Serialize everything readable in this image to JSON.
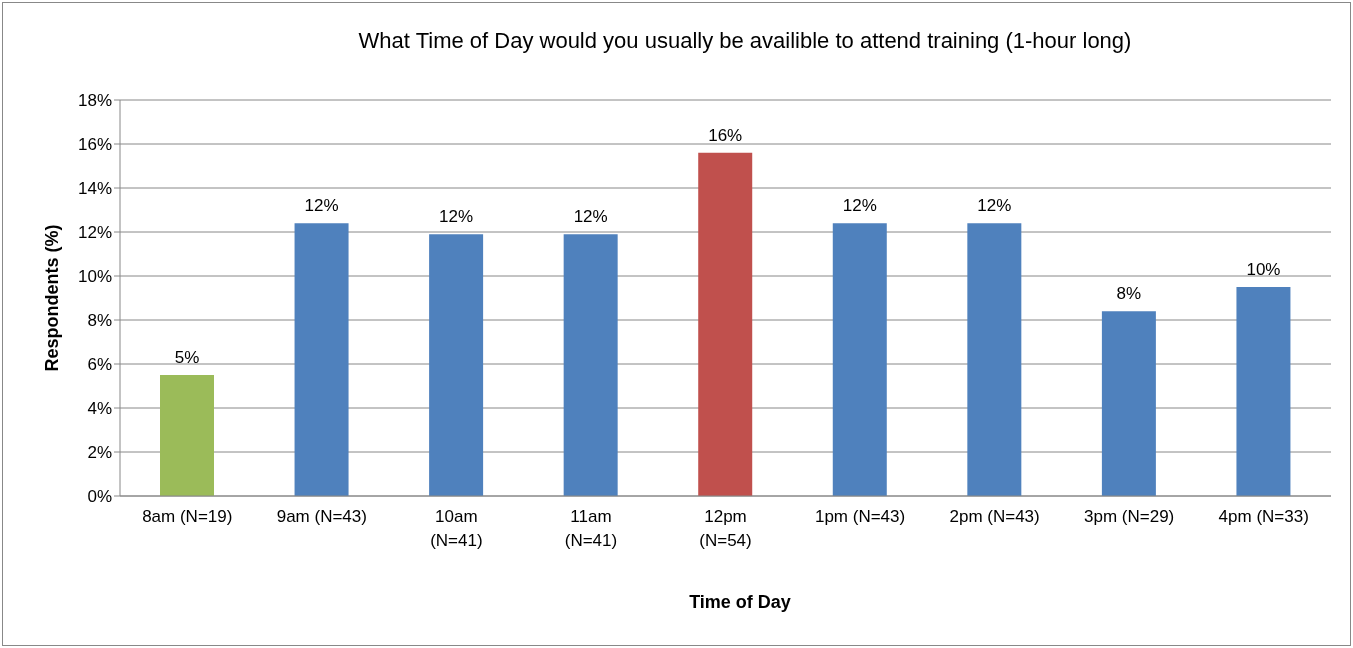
{
  "chart_data": {
    "type": "bar",
    "title": "What Time of Day would you usually be availible to attend training (1-hour long)",
    "xlabel": "Time of Day",
    "ylabel": "Respondents (%)",
    "categories": [
      "8am (N=19)",
      "9am (N=43)",
      "10am (N=41)",
      "11am (N=41)",
      "12pm (N=54)",
      "1pm (N=43)",
      "2pm (N=43)",
      "3pm (N=29)",
      "4pm (N=33)"
    ],
    "values": [
      5.5,
      12.4,
      11.9,
      11.9,
      15.6,
      12.4,
      12.4,
      8.4,
      9.5
    ],
    "value_labels": [
      "5%",
      "12%",
      "12%",
      "12%",
      "16%",
      "12%",
      "12%",
      "8%",
      "10%"
    ],
    "colors": [
      "#9bbb59",
      "#4f81bd",
      "#4f81bd",
      "#4f81bd",
      "#c0504d",
      "#4f81bd",
      "#4f81bd",
      "#4f81bd",
      "#4f81bd"
    ],
    "ylim": [
      0,
      18
    ],
    "yticks": [
      {
        "value": 0,
        "label": "0%"
      },
      {
        "value": 2,
        "label": "2%"
      },
      {
        "value": 4,
        "label": "4%"
      },
      {
        "value": 6,
        "label": "6%"
      },
      {
        "value": 8,
        "label": "8%"
      },
      {
        "value": 10,
        "label": "10%"
      },
      {
        "value": 12,
        "label": "12%"
      },
      {
        "value": 14,
        "label": "14%"
      },
      {
        "value": 16,
        "label": "16%"
      },
      {
        "value": 18,
        "label": "18%"
      }
    ],
    "grid": "y",
    "legend": false
  }
}
